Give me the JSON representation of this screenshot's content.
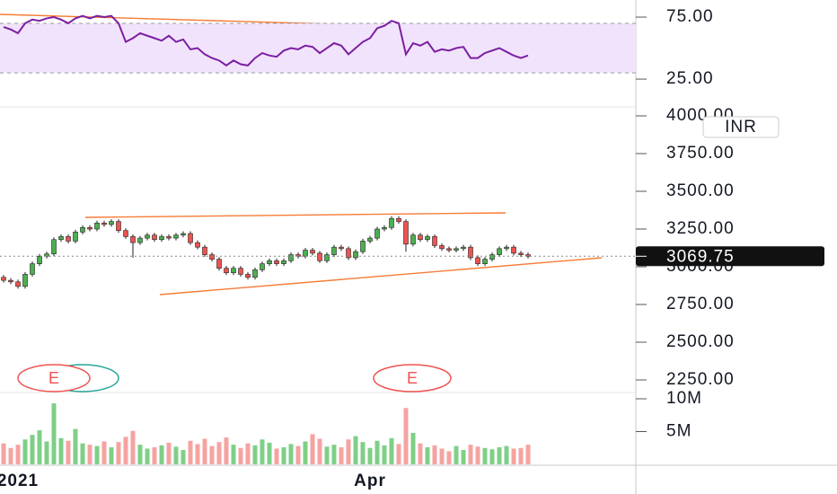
{
  "chart_data": [
    {
      "type": "line",
      "color": "#7b1fa2",
      "band": [
        30,
        70
      ],
      "band_color": "#f1e3fb",
      "ylim": [
        3.3,
        88.8
      ],
      "yticks": [
        {
          "value": 75,
          "label": "75.00"
        },
        {
          "value": 25,
          "label": "25.00"
        }
      ],
      "values": [
        67,
        65,
        62,
        70,
        73,
        72,
        74,
        75,
        73,
        70,
        74,
        76,
        74,
        76,
        75,
        76,
        70,
        55,
        58,
        62,
        60,
        58,
        56,
        60,
        55,
        57,
        49,
        50,
        45,
        42,
        40,
        36,
        40,
        37,
        36,
        42,
        46,
        44,
        43,
        48,
        50,
        49,
        52,
        51,
        46,
        50,
        54,
        52,
        45,
        50,
        55,
        58,
        66,
        68,
        72,
        70,
        45,
        54,
        52,
        55,
        47,
        49,
        48,
        50,
        51,
        42,
        42,
        46,
        48,
        50,
        47,
        44,
        42,
        44
      ]
    },
    {
      "type": "candlestick",
      "up_color": "#4caf50",
      "down_color": "#ef5350",
      "currency": "INR",
      "events": [
        "E",
        "E"
      ],
      "ylim": [
        2178.6,
        4053.6
      ],
      "yticks": [
        {
          "value": 4000,
          "label": "4000.00"
        },
        {
          "value": 3750,
          "label": "3750.00"
        },
        {
          "value": 3500,
          "label": "3500.00"
        },
        {
          "value": 3250,
          "label": "3250.00"
        },
        {
          "value": 3000,
          "label": "3000.00"
        },
        {
          "value": 2750,
          "label": "2750.00"
        },
        {
          "value": 2500,
          "label": "2500.00"
        },
        {
          "value": 2250,
          "label": "2250.00"
        }
      ],
      "open": [
        2930,
        2910,
        2900,
        2870,
        2950,
        3020,
        3070,
        3085,
        3180,
        3200,
        3170,
        3230,
        3260,
        3250,
        3290,
        3280,
        3300,
        3240,
        3200,
        3160,
        3190,
        3210,
        3180,
        3200,
        3190,
        3210,
        3220,
        3160,
        3130,
        3080,
        3050,
        2990,
        2960,
        2990,
        2950,
        2930,
        2980,
        3020,
        3040,
        3020,
        3040,
        3080,
        3070,
        3110,
        3090,
        3040,
        3080,
        3130,
        3120,
        3060,
        3100,
        3170,
        3190,
        3250,
        3260,
        3320,
        3300,
        3150,
        3210,
        3180,
        3200,
        3140,
        3120,
        3110,
        3120,
        3130,
        3060,
        3020,
        3050,
        3080,
        3120,
        3130,
        3090,
        3080
      ],
      "high": [
        2945,
        2925,
        2915,
        2965,
        3035,
        3085,
        3100,
        3195,
        3215,
        3215,
        3245,
        3275,
        3275,
        3305,
        3305,
        3315,
        3315,
        3255,
        3215,
        3205,
        3225,
        3225,
        3215,
        3215,
        3225,
        3235,
        3235,
        3175,
        3145,
        3095,
        3065,
        3005,
        3005,
        3005,
        2965,
        2995,
        3035,
        3055,
        3055,
        3055,
        3095,
        3095,
        3125,
        3125,
        3105,
        3095,
        3145,
        3145,
        3135,
        3115,
        3185,
        3205,
        3265,
        3275,
        3335,
        3335,
        3315,
        3225,
        3225,
        3215,
        3215,
        3155,
        3135,
        3135,
        3145,
        3145,
        3075,
        3065,
        3095,
        3135,
        3145,
        3145,
        3105,
        3095
      ],
      "low": [
        2895,
        2885,
        2855,
        2855,
        2935,
        3005,
        3055,
        3070,
        3165,
        3155,
        3155,
        3215,
        3235,
        3235,
        3265,
        3265,
        3225,
        3185,
        3060,
        3145,
        3175,
        3165,
        3165,
        3175,
        3175,
        3195,
        3145,
        3115,
        3065,
        3035,
        2975,
        2945,
        2945,
        2935,
        2915,
        2915,
        2965,
        3005,
        3005,
        3005,
        3025,
        3055,
        3055,
        3075,
        3025,
        3025,
        3065,
        3105,
        3045,
        3045,
        3085,
        3155,
        3175,
        3235,
        3245,
        3285,
        3100,
        3135,
        3165,
        3165,
        3125,
        3105,
        3095,
        3095,
        3105,
        3045,
        3005,
        3005,
        3035,
        3065,
        3105,
        3075,
        3065,
        3055
      ],
      "close": [
        2910,
        2900,
        2870,
        2950,
        3020,
        3070,
        3085,
        3180,
        3200,
        3170,
        3230,
        3260,
        3250,
        3290,
        3280,
        3300,
        3240,
        3200,
        3160,
        3190,
        3210,
        3180,
        3200,
        3190,
        3210,
        3220,
        3160,
        3130,
        3080,
        3050,
        2990,
        2960,
        2990,
        2950,
        2930,
        2980,
        3020,
        3040,
        3020,
        3040,
        3080,
        3070,
        3110,
        3090,
        3040,
        3080,
        3130,
        3120,
        3060,
        3100,
        3170,
        3190,
        3250,
        3260,
        3320,
        3300,
        3150,
        3210,
        3180,
        3200,
        3140,
        3120,
        3110,
        3120,
        3130,
        3060,
        3020,
        3050,
        3080,
        3120,
        3130,
        3090,
        3080,
        3069.75
      ]
    },
    {
      "type": "bar",
      "up_color": "#7fcf87",
      "down_color": "#f5a3a1",
      "ylim": [
        0,
        10.96
      ],
      "yticks": [
        {
          "value": 10,
          "label": "10M"
        },
        {
          "value": 5,
          "label": "5M"
        }
      ],
      "categories": [
        null,
        null,
        "2021",
        null,
        null,
        null,
        null,
        null,
        null,
        null,
        null,
        null,
        null,
        null,
        null,
        null,
        null,
        null,
        null,
        null,
        null,
        null,
        null,
        null,
        null,
        null,
        null,
        null,
        null,
        null,
        null,
        null,
        null,
        null,
        null,
        null,
        null,
        null,
        null,
        null,
        null,
        null,
        null,
        null,
        null,
        null,
        null,
        null,
        null,
        null,
        null,
        "Apr",
        null,
        null,
        null,
        null,
        null,
        null,
        null,
        null,
        null,
        null,
        null,
        null,
        null,
        null,
        null,
        null,
        null,
        null,
        null,
        null,
        null,
        null
      ],
      "values": [
        3.2,
        2.5,
        3.0,
        3.8,
        4.5,
        5.2,
        3.5,
        9.3,
        4.0,
        3.6,
        5.4,
        3.2,
        3.0,
        2.8,
        3.5,
        2.6,
        3.4,
        4.2,
        5.1,
        3.0,
        2.4,
        2.6,
        2.9,
        3.3,
        2.7,
        2.2,
        3.6,
        3.1,
        3.9,
        2.8,
        3.4,
        4.1,
        3.0,
        2.5,
        3.2,
        2.9,
        3.8,
        3.3,
        2.4,
        2.6,
        3.1,
        2.8,
        3.5,
        4.6,
        3.9,
        2.7,
        3.0,
        2.6,
        3.8,
        4.3,
        3.4,
        2.5,
        3.6,
        2.9,
        4.0,
        3.1,
        8.6,
        4.8,
        3.2,
        2.6,
        2.9,
        2.4,
        2.0,
        2.8,
        2.2,
        3.0,
        2.7,
        2.5,
        2.3,
        2.6,
        2.8,
        2.4,
        2.5,
        3.0
      ]
    }
  ]
}
